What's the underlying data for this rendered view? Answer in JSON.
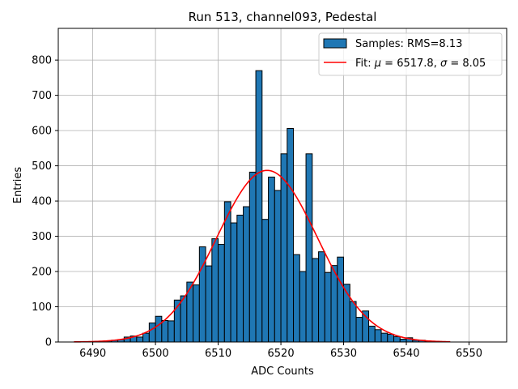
{
  "chart_data": {
    "type": "bar",
    "title": "Run 513, channel093, Pedestal",
    "xlabel": "ADC Counts",
    "ylabel": "Entries",
    "xlim": [
      6484.5,
      6556.0
    ],
    "ylim": [
      0,
      890
    ],
    "xticks": [
      6490,
      6500,
      6510,
      6520,
      6530,
      6540,
      6550
    ],
    "yticks": [
      0,
      100,
      200,
      300,
      400,
      500,
      600,
      700,
      800
    ],
    "grid": true,
    "legend_placement": "upper-right",
    "bin_width": 1,
    "histogram": {
      "name": "Samples: RMS=8.13",
      "color": "#1f77b4",
      "edgecolor": "#000000",
      "bin_left_edges": [
        6489,
        6490,
        6491,
        6492,
        6493,
        6494,
        6495,
        6496,
        6497,
        6498,
        6499,
        6500,
        6501,
        6502,
        6503,
        6504,
        6505,
        6506,
        6507,
        6508,
        6509,
        6510,
        6511,
        6512,
        6513,
        6514,
        6515,
        6516,
        6517,
        6518,
        6519,
        6520,
        6521,
        6522,
        6523,
        6524,
        6525,
        6526,
        6527,
        6528,
        6529,
        6530,
        6531,
        6532,
        6533,
        6534,
        6535,
        6536,
        6537,
        6538,
        6539,
        6540,
        6541,
        6542,
        6543,
        6544
      ],
      "counts": [
        1,
        1,
        2,
        3,
        5,
        7,
        14,
        17,
        14,
        25,
        54,
        73,
        61,
        60,
        119,
        131,
        170,
        162,
        270,
        216,
        293,
        277,
        398,
        338,
        360,
        384,
        482,
        770,
        348,
        468,
        430,
        534,
        606,
        248,
        200,
        534,
        237,
        256,
        197,
        217,
        241,
        164,
        115,
        70,
        88,
        45,
        35,
        25,
        22,
        15,
        8,
        12,
        5,
        5,
        2,
        1
      ]
    },
    "fit": {
      "name": "Fit: μ = 6517.8, σ = 8.05",
      "label_prefix": "Fit: ",
      "mu_symbol": "μ",
      "mu_text": " = 6517.8, ",
      "sigma_symbol": "σ",
      "sigma_text": " = 8.05",
      "color": "#ff0000",
      "mu": 6517.8,
      "sigma": 8.05,
      "peak": 487,
      "x_range": [
        6487,
        6547
      ]
    },
    "histogram_legend": {
      "text": "Samples: RMS=8.13"
    }
  }
}
